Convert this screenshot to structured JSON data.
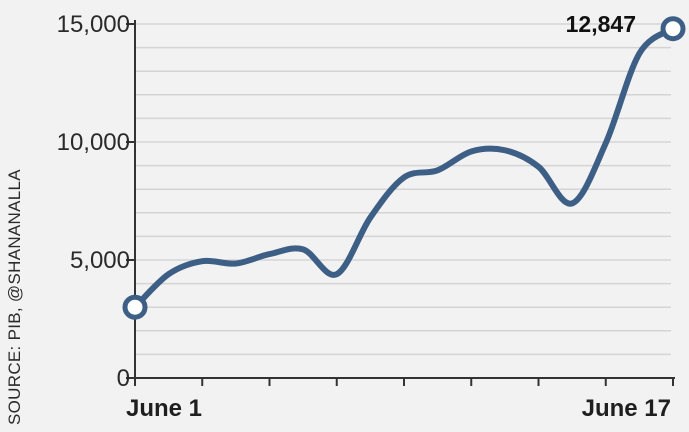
{
  "chart_data": {
    "type": "line",
    "source": "SOURCE: PIB, @SHANANALLA",
    "x_labels": {
      "start": "June 1",
      "end": "June 17"
    },
    "x": [
      1,
      2,
      3,
      4,
      5,
      6,
      7,
      8,
      9,
      10,
      11,
      12,
      13,
      14,
      15,
      16,
      17
    ],
    "series": [
      {
        "values": [
          3000,
          4400,
          4950,
          4850,
          5250,
          5450,
          4400,
          6800,
          8500,
          8800,
          9600,
          9650,
          8950,
          7400,
          9950,
          13750,
          14800
        ]
      }
    ],
    "ylim": [
      0,
      15000
    ],
    "yticks": [
      0,
      5000,
      10000,
      15000
    ],
    "ytick_labels": [
      "0",
      "5,000",
      "10,000",
      "15,000"
    ],
    "grid": true,
    "callout": {
      "text": "12,847"
    },
    "colors": {
      "line": "#3d5f86",
      "marker_fill": "#ffffff",
      "grid": "#d4d4d4",
      "background": "#f2f2f2",
      "axis": "#333333"
    }
  }
}
